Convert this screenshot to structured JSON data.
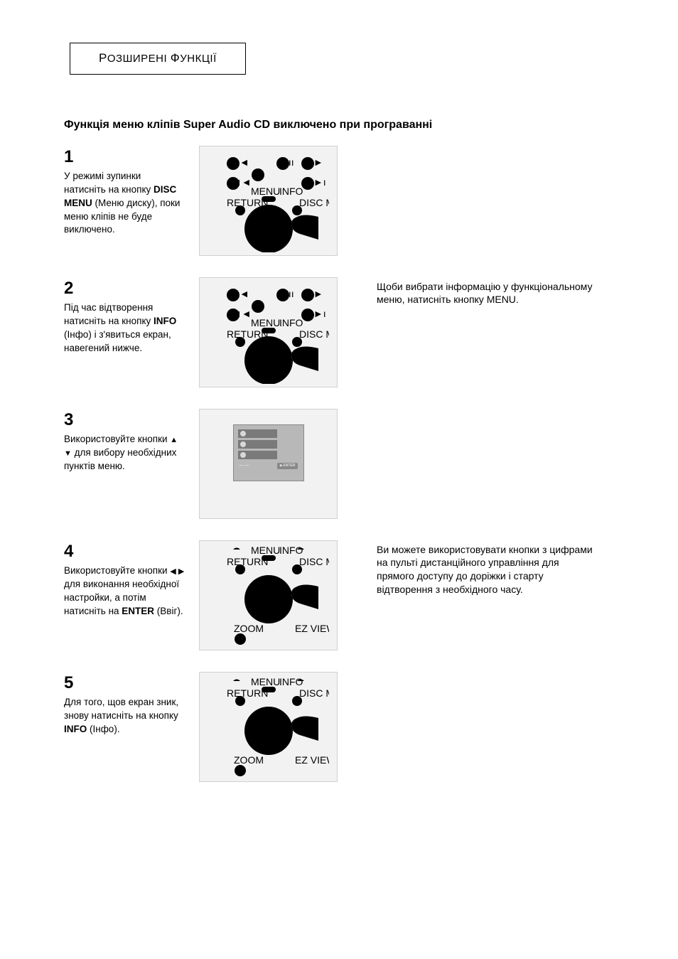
{
  "header": {
    "title_html": "<span class='bigcap'>Р</span>ОЗШИРЕНІ <span class='bigcap'>Ф</span>УНКЦІЇ"
  },
  "subheading": "Функція меню кліпів Super Audio CD виключено при програванні",
  "steps": [
    {
      "num": "1",
      "text_html": "У режимі зупинки натисніть на кнопку <b>DISC MENU</b> (Меню диску), поки меню кліпів не буде виключено.",
      "illus": "remote_top",
      "side": ""
    },
    {
      "num": "2",
      "text_html": "Під час відтворення натисніть на кнопку <b>INFO</b> (Інфо) і з'явиться екран, навегений нижче.",
      "illus": "remote_top",
      "side": "Щоби вибрати інформацію у функціональному меню, натисніть кнопку MENU."
    },
    {
      "num": "3",
      "text_html": "Використовуйте кнопки <span class='arrow'>▲ ▼</span> для вибору необхідних пунктів меню.",
      "illus": "screen",
      "side": ""
    },
    {
      "num": "4",
      "text_html": "Використовуйте кнопки <span class='arrow'>◀ ▶</span> для виконання необхідної настройки, а потім натисніть на <b>ENTER</b> (Ввіг).",
      "illus": "remote_bottom",
      "side": "Ви можете використовувати кнопки з цифрами на пульті дистанційного управління для прямого доступу до доріжки і старту відтворення з необхідного часу."
    },
    {
      "num": "5",
      "text_html": "Для того, щов екран зник, знову натисніть на кнопку <b>INFO</b> (Інфо).",
      "illus": "remote_bottom",
      "side": ""
    }
  ],
  "illus_style": {
    "bg": "#f2f2f2",
    "border": "#d0d0d0",
    "screen_bg": "#b8b8b8",
    "screen_line": "#7a7a7a",
    "screen_dot": "#d8d8d8"
  }
}
